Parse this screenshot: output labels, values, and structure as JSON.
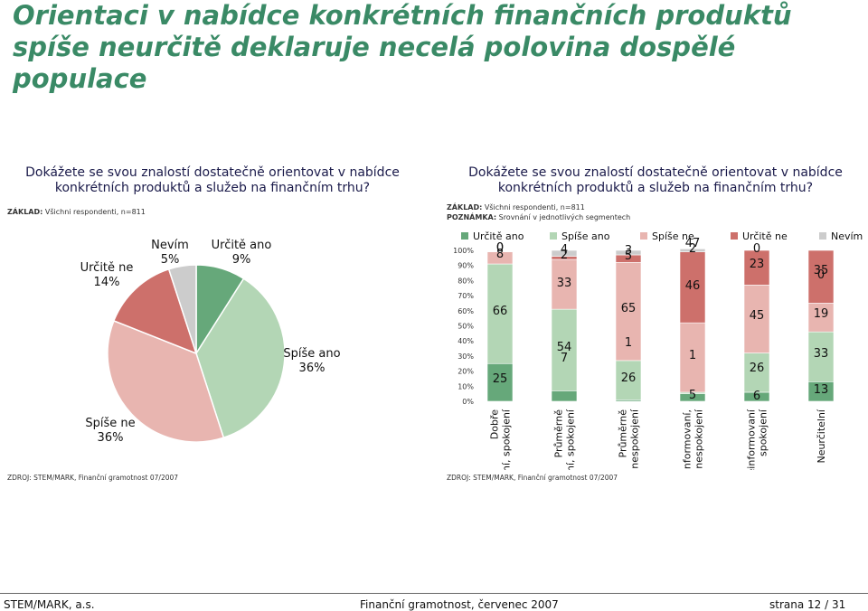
{
  "title": "Orientaci v nabídce konkrétních finančních produktů spíše neurčitě deklaruje necelá polovina dospělé populace",
  "left": {
    "question": "Dokážete se svou znalostí dostatečně orientovat v nabídce konkrétních produktů a služeb na finančním trhu?",
    "base_label": "ZÁKLAD:",
    "base_text": "Všichni respondenti, n=811",
    "source": "ZDROJ: STEM/MARK, Finanční gramotnost 07/2007"
  },
  "right": {
    "question": "Dokážete se svou znalostí dostatečně orientovat v nabídce konkrétních produktů a služeb na finančním trhu?",
    "base_label": "ZÁKLAD:",
    "base_text": "Všichni respondenti, n=811",
    "note_label": "POZNÁMKA:",
    "note_text": "Srovnání v jednotlivých segmentech",
    "source": "ZDROJ: STEM/MARK, Finanční gramotnost 07/2007"
  },
  "footer": {
    "org": "STEM/MARK, a.s.",
    "report": "Finanční gramotnost, červenec 2007",
    "page": "strana 12 / 31"
  },
  "colors": {
    "title": "#3a8a66",
    "urcite_ano": "#66a87a",
    "spise_ano": "#b3d6b5",
    "spise_ne": "#e8b5b0",
    "urcite_ne": "#cd706b",
    "nevim": "#cccccc"
  },
  "chart_data": [
    {
      "type": "pie",
      "categories": [
        "Určitě ano",
        "Spíše ano",
        "Spíše ne",
        "Určitě ne",
        "Nevím"
      ],
      "values": [
        9,
        36,
        36,
        14,
        5
      ],
      "labels": [
        "9%",
        "36%",
        "36%",
        "14%",
        "5%"
      ]
    },
    {
      "type": "bar",
      "stacked": true,
      "orientation": "vertical",
      "categories": [
        "Dobře informovaní, spokojení",
        "Průměrně informovaní, spokojení",
        "Průměrně informovaní, nespokojení",
        "Neinformovaní, nespokojení",
        "Neinformovaní spokojení",
        "Neurčitelní"
      ],
      "series": [
        {
          "name": "Určitě ano",
          "values": [
            25,
            7,
            1,
            5,
            6,
            13
          ]
        },
        {
          "name": "Spíše ano",
          "values": [
            66,
            54,
            26,
            1,
            26,
            33
          ]
        },
        {
          "name": "Spíše ne",
          "values": [
            8,
            33,
            65,
            46,
            45,
            19
          ]
        },
        {
          "name": "Určitě ne",
          "values": [
            0,
            2,
            5,
            47,
            23,
            35
          ]
        },
        {
          "name": "Nevím",
          "values": [
            0,
            4,
            3,
            2,
            0,
            0
          ]
        }
      ],
      "y_ticks": [
        "0%",
        "10%",
        "20%",
        "30%",
        "40%",
        "50%",
        "60%",
        "70%",
        "80%",
        "90%",
        "100%"
      ],
      "ylim": [
        0,
        100
      ],
      "legend": "top"
    }
  ]
}
